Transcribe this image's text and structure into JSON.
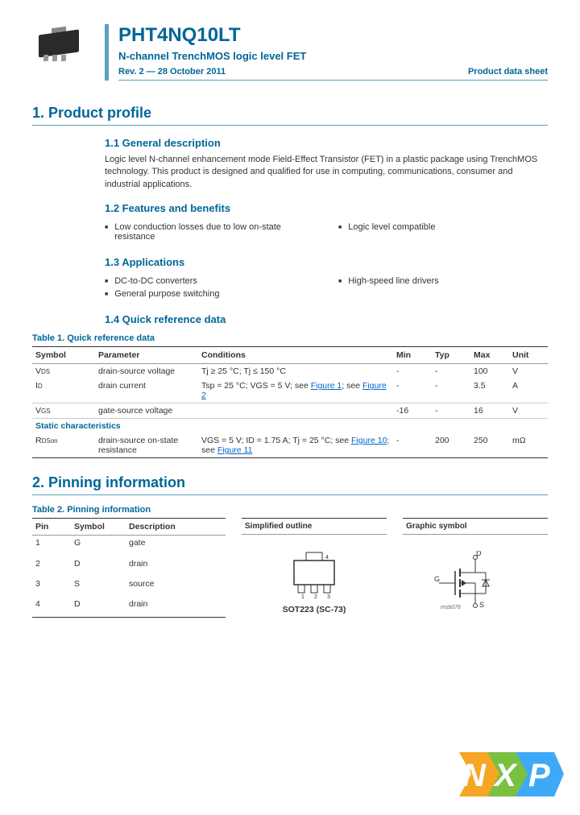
{
  "header": {
    "part_number": "PHT4NQ10LT",
    "subtitle": "N-channel TrenchMOS logic level FET",
    "revision": "Rev. 2 — 28 October 2011",
    "doc_type": "Product data sheet"
  },
  "section1": {
    "title": "1.   Product profile",
    "s11": {
      "title": "1.1   General description",
      "text": "Logic level N-channel enhancement mode Field-Effect Transistor (FET) in a plastic package using TrenchMOS technology. This product is designed and qualified for use in computing, communications, consumer and industrial applications."
    },
    "s12": {
      "title": "1.2   Features and benefits",
      "b1": "Low conduction losses due to low on-state resistance",
      "b2": "Logic level compatible"
    },
    "s13": {
      "title": "1.3   Applications",
      "b1": "DC-to-DC converters",
      "b2": "High-speed line drivers",
      "b3": "General purpose switching"
    },
    "s14": {
      "title": "1.4   Quick reference data"
    }
  },
  "table1": {
    "caption": "Table 1.    Quick reference data",
    "headers": {
      "symbol": "Symbol",
      "parameter": "Parameter",
      "conditions": "Conditions",
      "min": "Min",
      "typ": "Typ",
      "max": "Max",
      "unit": "Unit"
    },
    "rows": [
      {
        "sym": "V",
        "sub": "DS",
        "param": "drain-source voltage",
        "cond": "Tj ≥ 25 °C; Tj ≤ 150 °C",
        "min": "-",
        "typ": "-",
        "max": "100",
        "unit": "V"
      },
      {
        "sym": "I",
        "sub": "D",
        "param": "drain current",
        "cond_pre": "Tsp = 25 °C; VGS = 5 V; see ",
        "cond_link1": "Figure 1",
        "cond_mid": "; see ",
        "cond_link2": "Figure 2",
        "min": "-",
        "typ": "-",
        "max": "3.5",
        "unit": "A"
      },
      {
        "sym": "V",
        "sub": "GS",
        "param": "gate-source voltage",
        "cond": "",
        "min": "-16",
        "typ": "-",
        "max": "16",
        "unit": "V"
      }
    ],
    "static_label": "Static characteristics",
    "static_row": {
      "sym": "R",
      "sub": "DSon",
      "param": "drain-source on-state resistance",
      "cond_pre": "VGS = 5 V; ID = 1.75 A; Tj = 25 °C; see ",
      "cond_link1": "Figure 10",
      "cond_mid": "; see ",
      "cond_link2": "Figure 11",
      "min": "-",
      "typ": "200",
      "max": "250",
      "unit": "mΩ"
    }
  },
  "section2": {
    "title": "2.   Pinning information"
  },
  "table2": {
    "caption": "Table 2.    Pinning information",
    "headers": {
      "pin": "Pin",
      "symbol": "Symbol",
      "description": "Description",
      "outline": "Simplified outline",
      "graphic": "Graphic symbol"
    },
    "rows": [
      {
        "pin": "1",
        "sym": "G",
        "desc": "gate"
      },
      {
        "pin": "2",
        "sym": "D",
        "desc": "drain"
      },
      {
        "pin": "3",
        "sym": "S",
        "desc": "source"
      },
      {
        "pin": "4",
        "sym": "D",
        "desc": "drain"
      }
    ],
    "pkg_caption": "SOT223 (SC-73)",
    "sym_code": "msb076",
    "sym_d": "D",
    "sym_g": "G",
    "sym_s": "S"
  },
  "colors": {
    "brand": "#006699",
    "rule": "#5aa0c0",
    "logo_n": "#f5a623",
    "logo_x": "#7ac142",
    "logo_p": "#3fa9f5"
  }
}
